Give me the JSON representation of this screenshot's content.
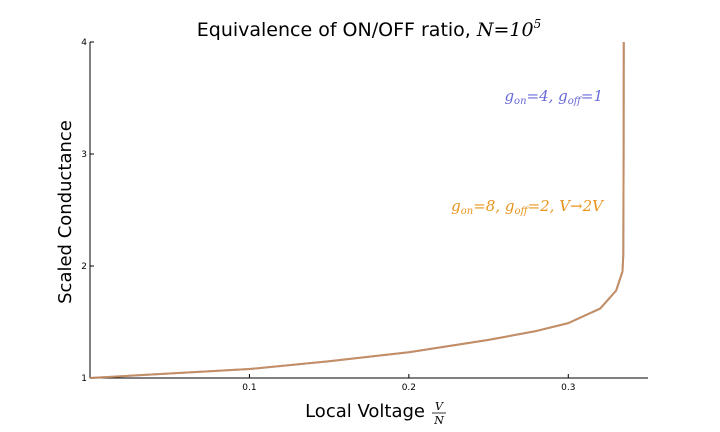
{
  "chart_data": {
    "type": "line",
    "title_text": "Equivalence of ON/OFF ratio, ",
    "title_math": "N=10",
    "title_exp": "5",
    "xlabel": "Local Voltage",
    "xlabel_frac_num": "V",
    "xlabel_frac_den": "N",
    "ylabel": "Scaled Conductance",
    "xlim": [
      0,
      0.35
    ],
    "ylim": [
      1,
      4
    ],
    "xticks": [
      {
        "value": 0.1,
        "label": "0.1"
      },
      {
        "value": 0.2,
        "label": "0.2"
      },
      {
        "value": 0.3,
        "label": "0.3"
      }
    ],
    "yticks": [
      {
        "value": 1,
        "label": "1"
      },
      {
        "value": 2,
        "label": "2"
      },
      {
        "value": 3,
        "label": "3"
      },
      {
        "value": 4,
        "label": "4"
      }
    ],
    "grid": false,
    "series": [
      {
        "color": "#6a6ad8",
        "x": [
          0,
          0.05,
          0.1,
          0.15,
          0.2,
          0.25,
          0.28,
          0.3,
          0.32,
          0.33,
          0.334,
          0.3345,
          0.3347,
          0.3348
        ],
        "y": [
          1.0,
          1.04,
          1.08,
          1.15,
          1.23,
          1.34,
          1.42,
          1.49,
          1.62,
          1.78,
          1.95,
          2.1,
          3.0,
          4.0
        ]
      },
      {
        "color": "#e8951e",
        "x": [
          0,
          0.05,
          0.1,
          0.15,
          0.2,
          0.25,
          0.28,
          0.3,
          0.32,
          0.33,
          0.334,
          0.3345,
          0.3347,
          0.3348
        ],
        "y": [
          1.0,
          1.04,
          1.08,
          1.15,
          1.23,
          1.34,
          1.42,
          1.49,
          1.62,
          1.78,
          1.95,
          2.1,
          3.0,
          4.0
        ]
      }
    ],
    "annotations": [
      {
        "text": "g_on=4, g_off=1",
        "color": "#6a6ad8"
      },
      {
        "text": "g_on=8, g_off=2, V→2V",
        "color": "#e8951e"
      }
    ]
  }
}
